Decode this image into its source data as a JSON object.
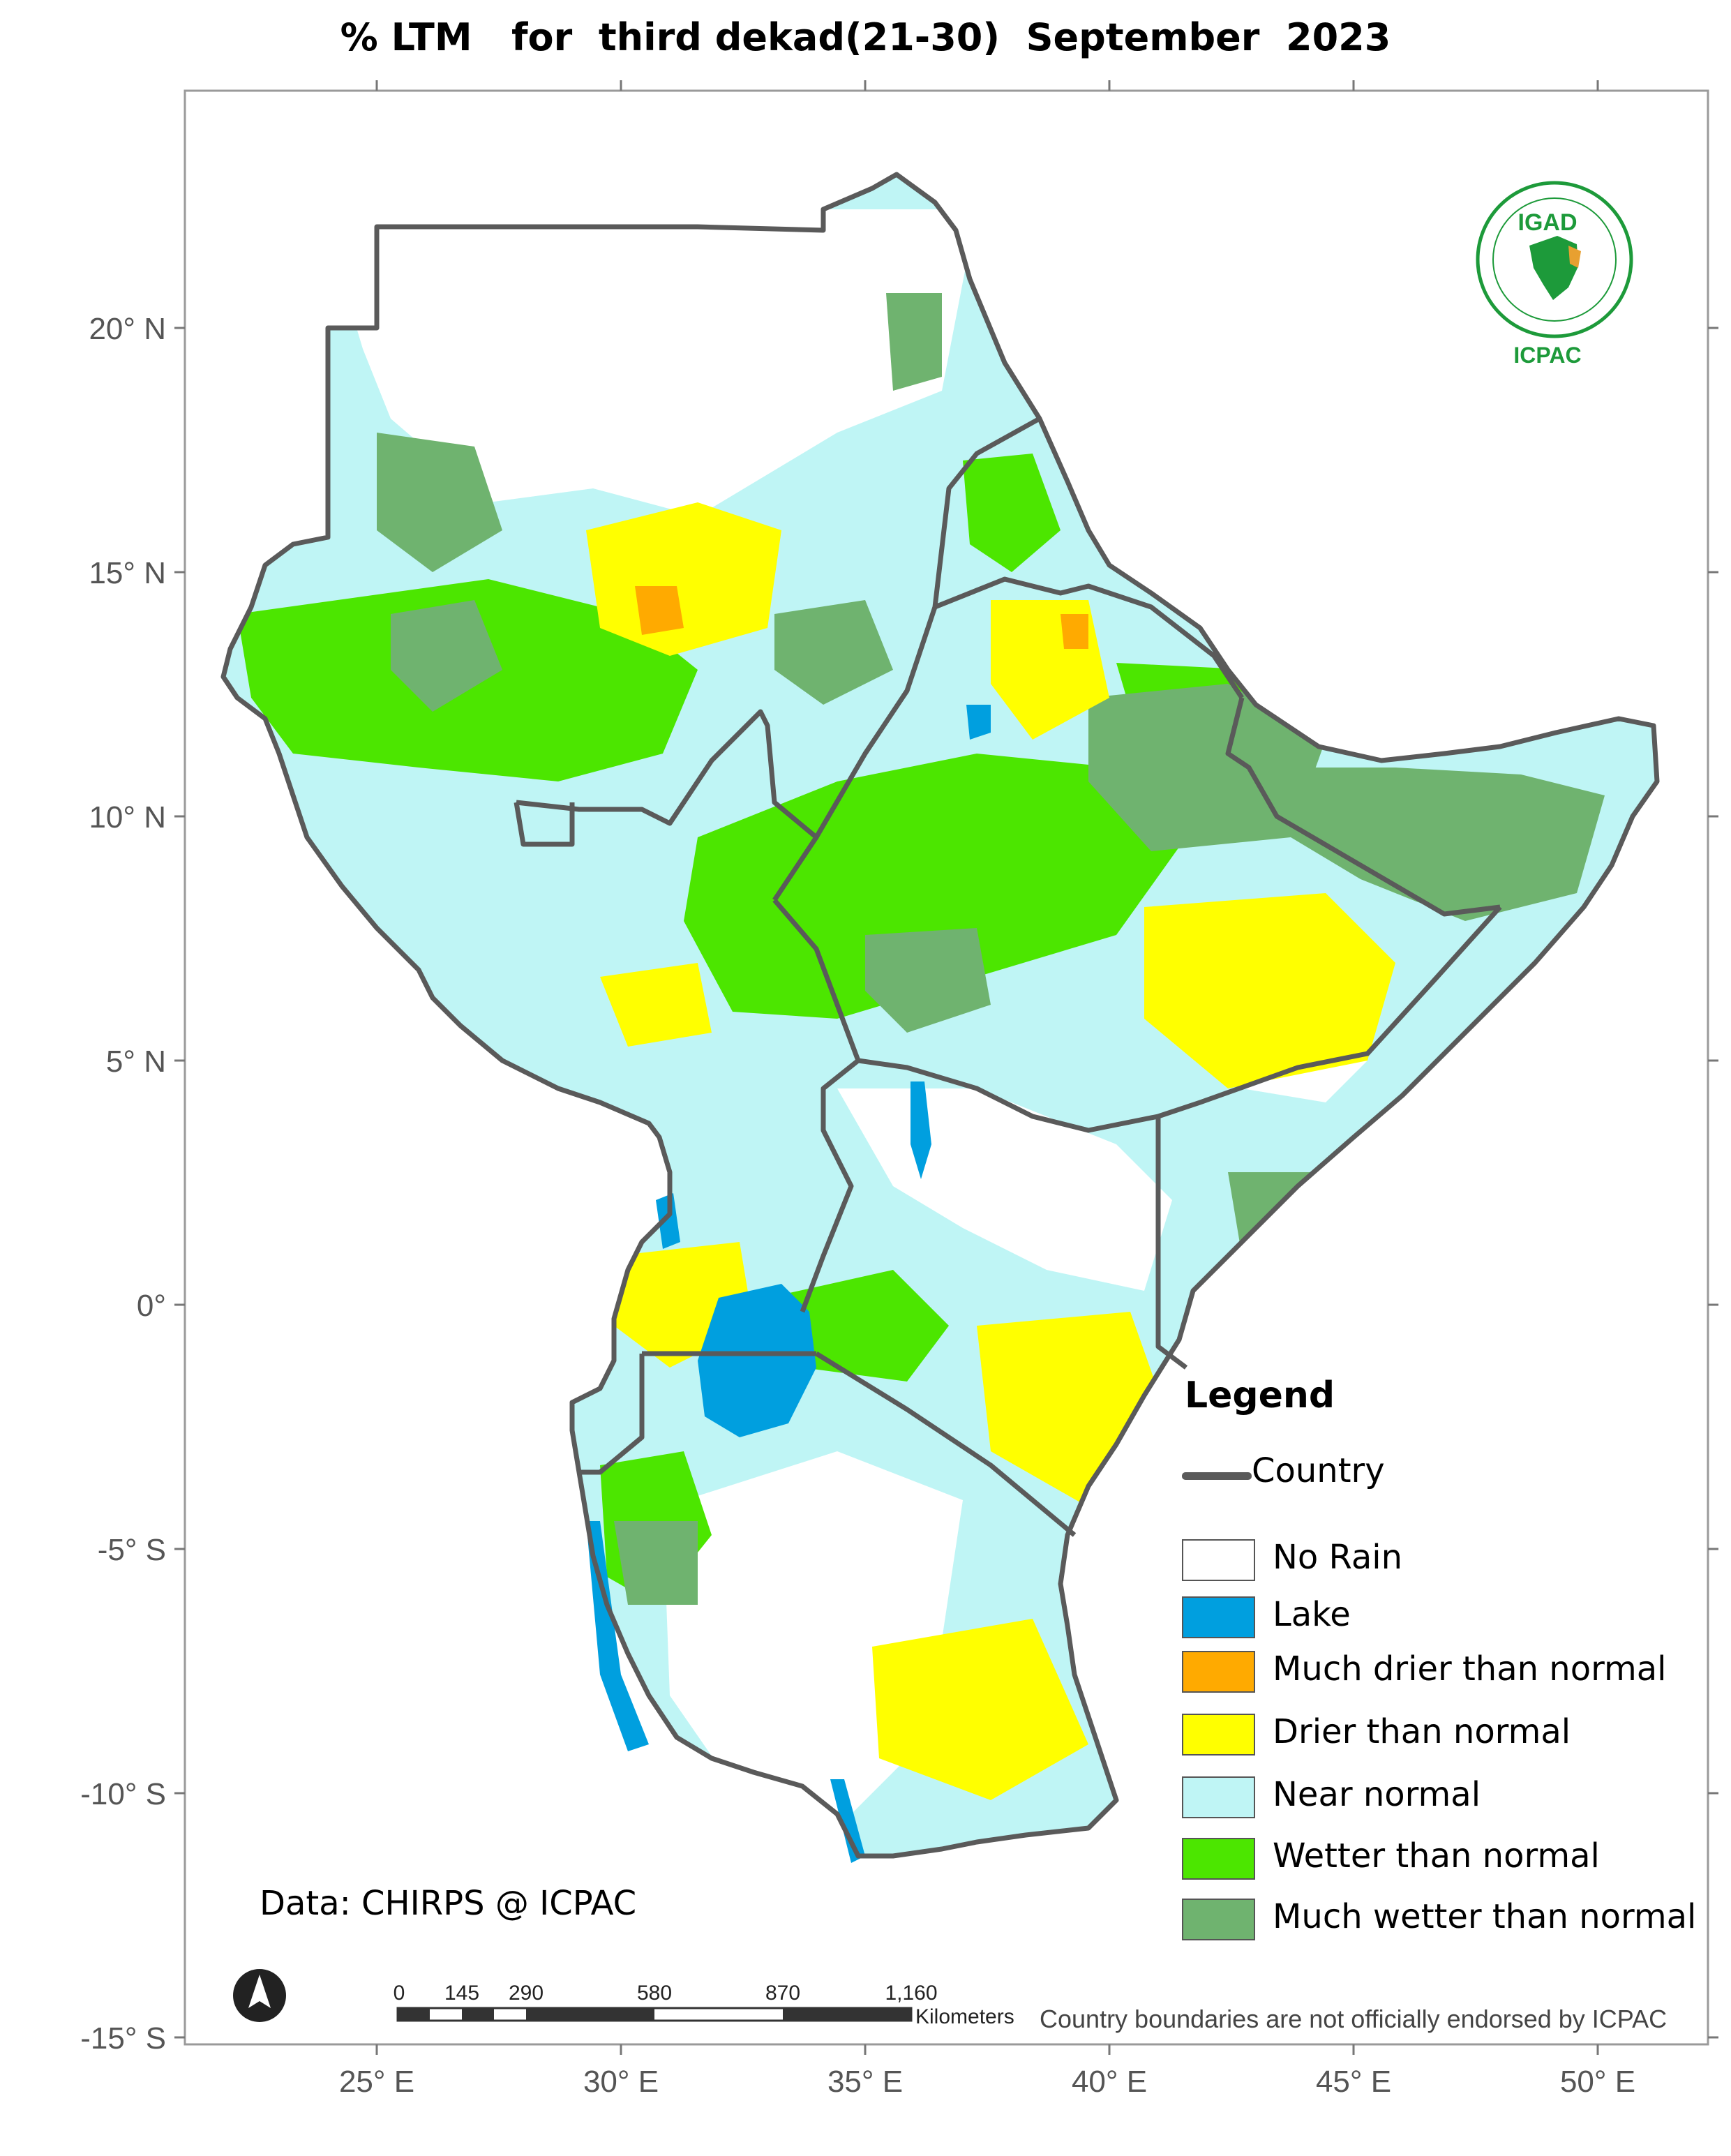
{
  "title": "% LTM   for  third dekad(21-30)  September  2023",
  "x_ticks": [
    "25° E",
    "30° E",
    "35° E",
    "40° E",
    "45° E",
    "50° E"
  ],
  "y_ticks": [
    "20° N",
    "15° N",
    "10° N",
    "5° N",
    "0°",
    "-5° S",
    "-10° S",
    "-15° S"
  ],
  "legend": {
    "title": "Legend",
    "country_label": "Country",
    "items": [
      {
        "label": "No Rain",
        "color": "#ffffff"
      },
      {
        "label": "Lake",
        "color": "#009fdf"
      },
      {
        "label": "Much drier than normal",
        "color": "#ffaa00"
      },
      {
        "label": "Drier than normal",
        "color": "#ffff00"
      },
      {
        "label": "Near normal",
        "color": "#bff5f5"
      },
      {
        "label": "Wetter than normal",
        "color": "#4ce600"
      },
      {
        "label": "Much wetter than normal",
        "color": "#6fb36f"
      }
    ]
  },
  "source": "Data: CHIRPS @ ICPAC",
  "disclaimer": "Country boundaries are not officially endorsed by ICPAC",
  "scale_bar": {
    "ticks": [
      "0",
      "145",
      "290",
      "580",
      "870",
      "1,160"
    ],
    "unit": "Kilometers"
  },
  "logo": {
    "top_text": "IGAD",
    "bottom_text": "ICPAC"
  },
  "north_arrow_icon": "north-arrow-icon",
  "colors": {
    "border": "#5a5a5a",
    "frame": "#9a9a9a"
  }
}
